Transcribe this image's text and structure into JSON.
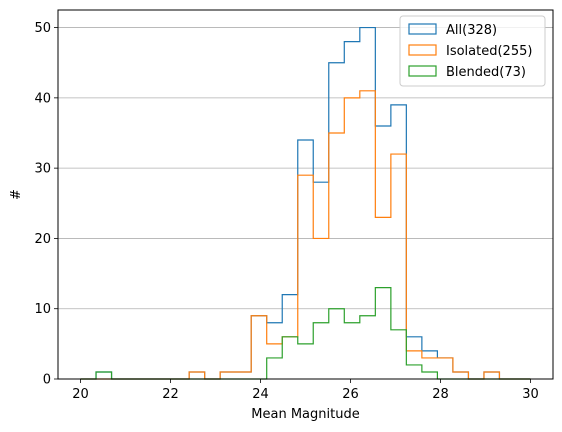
{
  "chart_data": {
    "type": "histogram",
    "title": "",
    "xlabel": "Mean Magnitude",
    "ylabel": "#",
    "xlim": [
      19.5,
      30.5
    ],
    "ylim": [
      0,
      52.5
    ],
    "xticks": [
      20,
      22,
      24,
      26,
      28,
      30
    ],
    "yticks": [
      0,
      10,
      20,
      30,
      40,
      50
    ],
    "grid": "y-major",
    "legend_position": "upper right",
    "bin_edges": [
      20.0,
      20.345,
      20.69,
      21.034,
      21.379,
      21.724,
      22.069,
      22.414,
      22.759,
      23.103,
      23.448,
      23.793,
      24.138,
      24.483,
      24.828,
      25.172,
      25.517,
      25.862,
      26.207,
      26.552,
      26.897,
      27.241,
      27.586,
      27.931,
      28.276,
      28.621,
      28.966,
      29.31,
      29.655,
      30.0
    ],
    "series": [
      {
        "name": "All(328)",
        "color": "#1f77b4",
        "values": [
          0,
          1,
          0,
          0,
          0,
          0,
          0,
          1,
          0,
          1,
          1,
          9,
          8,
          12,
          34,
          28,
          45,
          48,
          50,
          36,
          39,
          6,
          4,
          3,
          1,
          0,
          1,
          0,
          0
        ]
      },
      {
        "name": "Isolated(255)",
        "color": "#ff7f0e",
        "values": [
          0,
          0,
          0,
          0,
          0,
          0,
          0,
          1,
          0,
          1,
          1,
          9,
          5,
          6,
          29,
          20,
          35,
          40,
          41,
          23,
          32,
          4,
          3,
          3,
          1,
          0,
          1,
          0,
          0
        ]
      },
      {
        "name": "Blended(73)",
        "color": "#2ca02c",
        "values": [
          0,
          1,
          0,
          0,
          0,
          0,
          0,
          0,
          0,
          0,
          0,
          0,
          3,
          6,
          5,
          8,
          10,
          8,
          9,
          13,
          7,
          2,
          1,
          0,
          0,
          0,
          0,
          0,
          0
        ]
      }
    ]
  }
}
